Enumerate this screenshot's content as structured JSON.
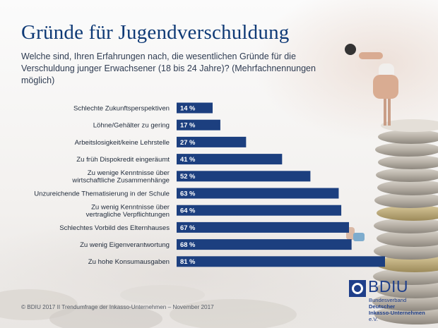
{
  "page": {
    "title": "Gründe für Jugendverschuldung",
    "subtitle": "Welche sind, Ihren Erfahrungen nach, die wesentlichen Gründe für die Verschuldung junger Erwachsener (18 bis 24 Jahre)? (Mehrfachnennungen möglich)",
    "footer": "© BDIU 2017  II  Trendumfrage der Inkasso-Unternehmen – November 2017"
  },
  "logo": {
    "name": "BDIU",
    "line1_prefix": "Bundesverband ",
    "line1_bold": "Deutscher",
    "line2_bold": "Inkasso-Unternehmen",
    "line2_suffix": " e.V."
  },
  "colors": {
    "title": "#0f3a76",
    "bar": "#1c3f7f",
    "bar_value_text": "#ffffff"
  },
  "chart_data": {
    "type": "bar",
    "orientation": "horizontal",
    "categories": [
      [
        "Schlechte Zukunftsperspektiven"
      ],
      [
        "Löhne/Gehälter zu gering"
      ],
      [
        "Arbeitslosigkeit/keine Lehrstelle"
      ],
      [
        "Zu früh Dispokredit eingeräumt"
      ],
      [
        "Zu wenige Kenntnisse über",
        "wirtschaftliche Zusammenhänge"
      ],
      [
        "Unzureichende Thematisierung in der Schule"
      ],
      [
        "Zu wenig Kenntnisse über",
        "vertragliche Verpflichtungen"
      ],
      [
        "Schlechtes Vorbild des Elternhauses"
      ],
      [
        "Zu wenig Eigenverantwortung"
      ],
      [
        "Zu hohe Konsumausgaben"
      ]
    ],
    "values": [
      14,
      17,
      27,
      41,
      52,
      63,
      64,
      67,
      68,
      81
    ],
    "value_labels": [
      "14 %",
      "17 %",
      "27 %",
      "41 %",
      "52 %",
      "63 %",
      "64 %",
      "67 %",
      "68 %",
      "81 %"
    ],
    "unit": "%",
    "xlim": [
      0,
      81
    ],
    "grid": false,
    "legend": "none"
  }
}
